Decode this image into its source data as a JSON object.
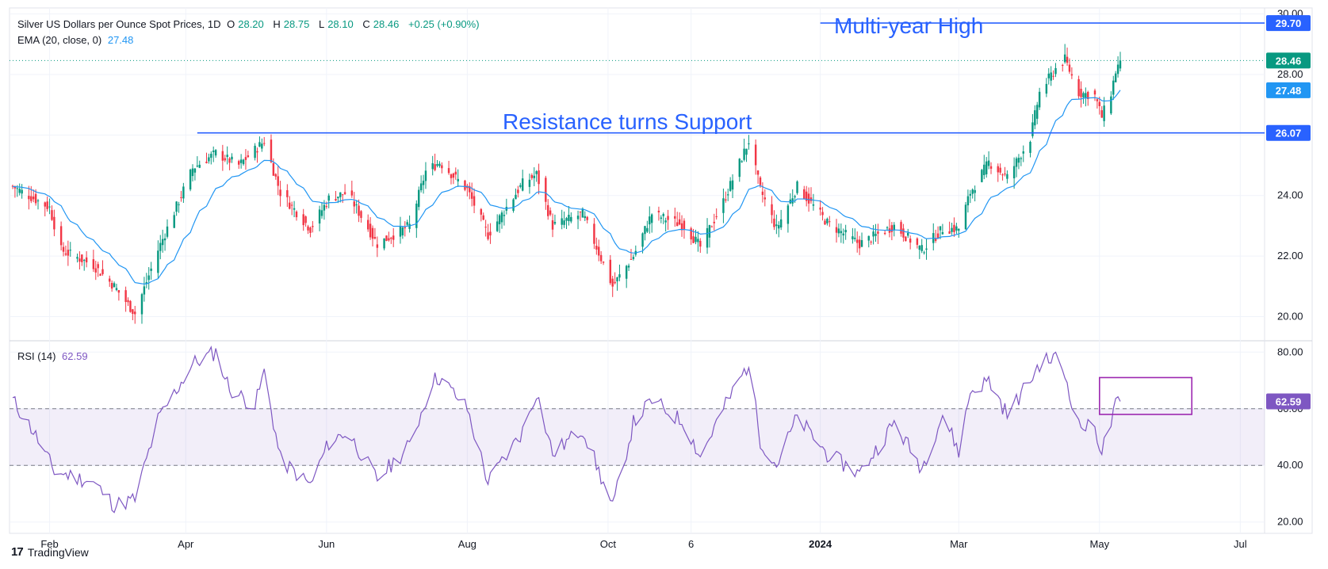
{
  "header": {
    "symbol": "Silver US Dollars per Ounce Spot Prices, 1D",
    "open_label": "O",
    "open": "28.20",
    "high_label": "H",
    "high": "28.75",
    "low_label": "L",
    "low": "28.10",
    "close_label": "C",
    "close": "28.46",
    "change": "+0.25 (+0.90%)",
    "ema_label": "EMA (20, close, 0)",
    "ema_value": "27.48",
    "rsi_label": "RSI (14)",
    "rsi_value": "62.59"
  },
  "annotations": {
    "multi_year_high": "Multi-year High",
    "resistance_support": "Resistance turns Support"
  },
  "footer": {
    "brand": "TradingView",
    "logo_glyph": "17"
  },
  "colors": {
    "up": "#089981",
    "down": "#f23645",
    "ema": "#2196f3",
    "rsi": "#7e57c2",
    "trendline": "#2962ff",
    "box": "#9c27b0",
    "band": "#7e57c2"
  },
  "chart_data": [
    {
      "type": "candlestick",
      "title": "Silver US Dollars per Ounce Spot Prices, 1D",
      "ylim": [
        19.2,
        30.2
      ],
      "y_ticks": [
        20,
        22,
        24,
        26,
        28,
        30
      ],
      "y_tick_labels": [
        "20.00",
        "22.00",
        "24.00",
        "26.00",
        "28.00",
        "30.00"
      ],
      "x_tick_labels": [
        "Feb",
        "Apr",
        "Jun",
        "Aug",
        "Oct",
        "6",
        "2024",
        "Mar",
        "May",
        "Jul"
      ],
      "x_tick_dates": [
        "2023-02-01",
        "2023-04-01",
        "2023-06-01",
        "2023-08-01",
        "2023-10-01",
        "2023-11-06",
        "2024-01-01",
        "2024-03-01",
        "2024-05-01",
        "2024-07-01"
      ],
      "date_range": [
        "2023-01-16",
        "2024-05-10"
      ],
      "keypoints": [
        {
          "date": "2023-01-16",
          "close": 24.3
        },
        {
          "date": "2023-02-01",
          "close": 23.6
        },
        {
          "date": "2023-02-06",
          "close": 22.2
        },
        {
          "date": "2023-02-20",
          "close": 21.7
        },
        {
          "date": "2023-03-01",
          "close": 21.0
        },
        {
          "date": "2023-03-10",
          "close": 20.1
        },
        {
          "date": "2023-03-20",
          "close": 22.2
        },
        {
          "date": "2023-04-04",
          "close": 24.9
        },
        {
          "date": "2023-04-14",
          "close": 25.4
        },
        {
          "date": "2023-04-24",
          "close": 25.0
        },
        {
          "date": "2023-05-05",
          "close": 25.8
        },
        {
          "date": "2023-05-12",
          "close": 24.1
        },
        {
          "date": "2023-05-25",
          "close": 22.9
        },
        {
          "date": "2023-06-02",
          "close": 23.9
        },
        {
          "date": "2023-06-10",
          "close": 24.1
        },
        {
          "date": "2023-06-23",
          "close": 22.4
        },
        {
          "date": "2023-07-07",
          "close": 23.0
        },
        {
          "date": "2023-07-14",
          "close": 24.8
        },
        {
          "date": "2023-07-20",
          "close": 25.1
        },
        {
          "date": "2023-08-01",
          "close": 24.2
        },
        {
          "date": "2023-08-10",
          "close": 22.7
        },
        {
          "date": "2023-08-25",
          "close": 24.4
        },
        {
          "date": "2023-08-31",
          "close": 24.7
        },
        {
          "date": "2023-09-07",
          "close": 23.0
        },
        {
          "date": "2023-09-20",
          "close": 23.4
        },
        {
          "date": "2023-10-03",
          "close": 21.0
        },
        {
          "date": "2023-10-12",
          "close": 22.0
        },
        {
          "date": "2023-10-20",
          "close": 23.4
        },
        {
          "date": "2023-11-03",
          "close": 23.0
        },
        {
          "date": "2023-11-10",
          "close": 22.3
        },
        {
          "date": "2023-11-20",
          "close": 23.8
        },
        {
          "date": "2023-12-01",
          "close": 25.8
        },
        {
          "date": "2023-12-06",
          "close": 24.2
        },
        {
          "date": "2023-12-13",
          "close": 22.9
        },
        {
          "date": "2023-12-22",
          "close": 24.3
        },
        {
          "date": "2024-01-04",
          "close": 23.1
        },
        {
          "date": "2024-01-18",
          "close": 22.4
        },
        {
          "date": "2024-02-02",
          "close": 23.0
        },
        {
          "date": "2024-02-14",
          "close": 22.2
        },
        {
          "date": "2024-02-23",
          "close": 22.9
        },
        {
          "date": "2024-03-01",
          "close": 22.9
        },
        {
          "date": "2024-03-06",
          "close": 24.1
        },
        {
          "date": "2024-03-14",
          "close": 25.1
        },
        {
          "date": "2024-03-22",
          "close": 24.6
        },
        {
          "date": "2024-04-01",
          "close": 25.9
        },
        {
          "date": "2024-04-05",
          "close": 27.4
        },
        {
          "date": "2024-04-12",
          "close": 28.2
        },
        {
          "date": "2024-04-16",
          "close": 28.5
        },
        {
          "date": "2024-04-22",
          "close": 27.4
        },
        {
          "date": "2024-04-29",
          "close": 27.3
        },
        {
          "date": "2024-05-02",
          "close": 26.6
        },
        {
          "date": "2024-05-06",
          "close": 27.4
        },
        {
          "date": "2024-05-08",
          "close": 28.1
        },
        {
          "date": "2024-05-10",
          "close": 28.46
        }
      ],
      "ema": {
        "name": "EMA (20, close, 0)",
        "last": 27.48
      },
      "last_close": 28.46,
      "price_labels": [
        "29.70",
        "28.46",
        "27.48",
        "26.07"
      ],
      "horizontal_levels": [
        {
          "value": 29.7,
          "label": "Multi-year High",
          "start_date": "2024-01-01"
        },
        {
          "value": 26.07,
          "label": "Resistance turns Support",
          "start_date": "2023-04-06"
        }
      ]
    },
    {
      "type": "line",
      "name": "RSI (14)",
      "ylim": [
        16,
        84
      ],
      "y_ticks": [
        20,
        40,
        60,
        80
      ],
      "y_tick_labels": [
        "20.00",
        "40.00",
        "60.00",
        "80.00"
      ],
      "band": [
        40,
        60
      ],
      "last": 62.59,
      "keypoints": [
        {
          "date": "2023-01-16",
          "rsi": 63
        },
        {
          "date": "2023-01-25",
          "rsi": 52
        },
        {
          "date": "2023-02-03",
          "rsi": 38
        },
        {
          "date": "2023-02-20",
          "rsi": 34
        },
        {
          "date": "2023-03-01",
          "rsi": 26
        },
        {
          "date": "2023-03-10",
          "rsi": 28
        },
        {
          "date": "2023-03-20",
          "rsi": 56
        },
        {
          "date": "2023-04-04",
          "rsi": 76
        },
        {
          "date": "2023-04-14",
          "rsi": 80
        },
        {
          "date": "2023-04-20",
          "rsi": 67
        },
        {
          "date": "2023-05-01",
          "rsi": 61
        },
        {
          "date": "2023-05-05",
          "rsi": 73
        },
        {
          "date": "2023-05-12",
          "rsi": 42
        },
        {
          "date": "2023-05-25",
          "rsi": 33
        },
        {
          "date": "2023-06-02",
          "rsi": 48
        },
        {
          "date": "2023-06-10",
          "rsi": 52
        },
        {
          "date": "2023-06-23",
          "rsi": 35
        },
        {
          "date": "2023-07-07",
          "rsi": 47
        },
        {
          "date": "2023-07-17",
          "rsi": 70
        },
        {
          "date": "2023-07-20",
          "rsi": 71
        },
        {
          "date": "2023-08-01",
          "rsi": 60
        },
        {
          "date": "2023-08-10",
          "rsi": 34
        },
        {
          "date": "2023-08-25",
          "rsi": 52
        },
        {
          "date": "2023-08-31",
          "rsi": 66
        },
        {
          "date": "2023-09-07",
          "rsi": 44
        },
        {
          "date": "2023-09-20",
          "rsi": 53
        },
        {
          "date": "2023-10-03",
          "rsi": 25
        },
        {
          "date": "2023-10-12",
          "rsi": 55
        },
        {
          "date": "2023-10-20",
          "rsi": 63
        },
        {
          "date": "2023-11-03",
          "rsi": 55
        },
        {
          "date": "2023-11-10",
          "rsi": 43
        },
        {
          "date": "2023-11-20",
          "rsi": 60
        },
        {
          "date": "2023-12-01",
          "rsi": 76
        },
        {
          "date": "2023-12-06",
          "rsi": 49
        },
        {
          "date": "2023-12-13",
          "rsi": 40
        },
        {
          "date": "2023-12-22",
          "rsi": 57
        },
        {
          "date": "2024-01-04",
          "rsi": 44
        },
        {
          "date": "2024-01-18",
          "rsi": 37
        },
        {
          "date": "2024-02-02",
          "rsi": 55
        },
        {
          "date": "2024-02-14",
          "rsi": 39
        },
        {
          "date": "2024-02-23",
          "rsi": 58
        },
        {
          "date": "2024-03-01",
          "rsi": 45
        },
        {
          "date": "2024-03-06",
          "rsi": 66
        },
        {
          "date": "2024-03-14",
          "rsi": 70
        },
        {
          "date": "2024-03-22",
          "rsi": 58
        },
        {
          "date": "2024-04-01",
          "rsi": 70
        },
        {
          "date": "2024-04-05",
          "rsi": 76
        },
        {
          "date": "2024-04-12",
          "rsi": 78
        },
        {
          "date": "2024-04-16",
          "rsi": 72
        },
        {
          "date": "2024-04-22",
          "rsi": 54
        },
        {
          "date": "2024-04-29",
          "rsi": 53
        },
        {
          "date": "2024-05-02",
          "rsi": 45
        },
        {
          "date": "2024-05-06",
          "rsi": 55
        },
        {
          "date": "2024-05-08",
          "rsi": 61
        },
        {
          "date": "2024-05-10",
          "rsi": 62.59
        }
      ],
      "highlight_box": {
        "start_date": "2024-05-01",
        "end_date": "2024-06-10",
        "low": 58,
        "high": 71
      }
    }
  ]
}
